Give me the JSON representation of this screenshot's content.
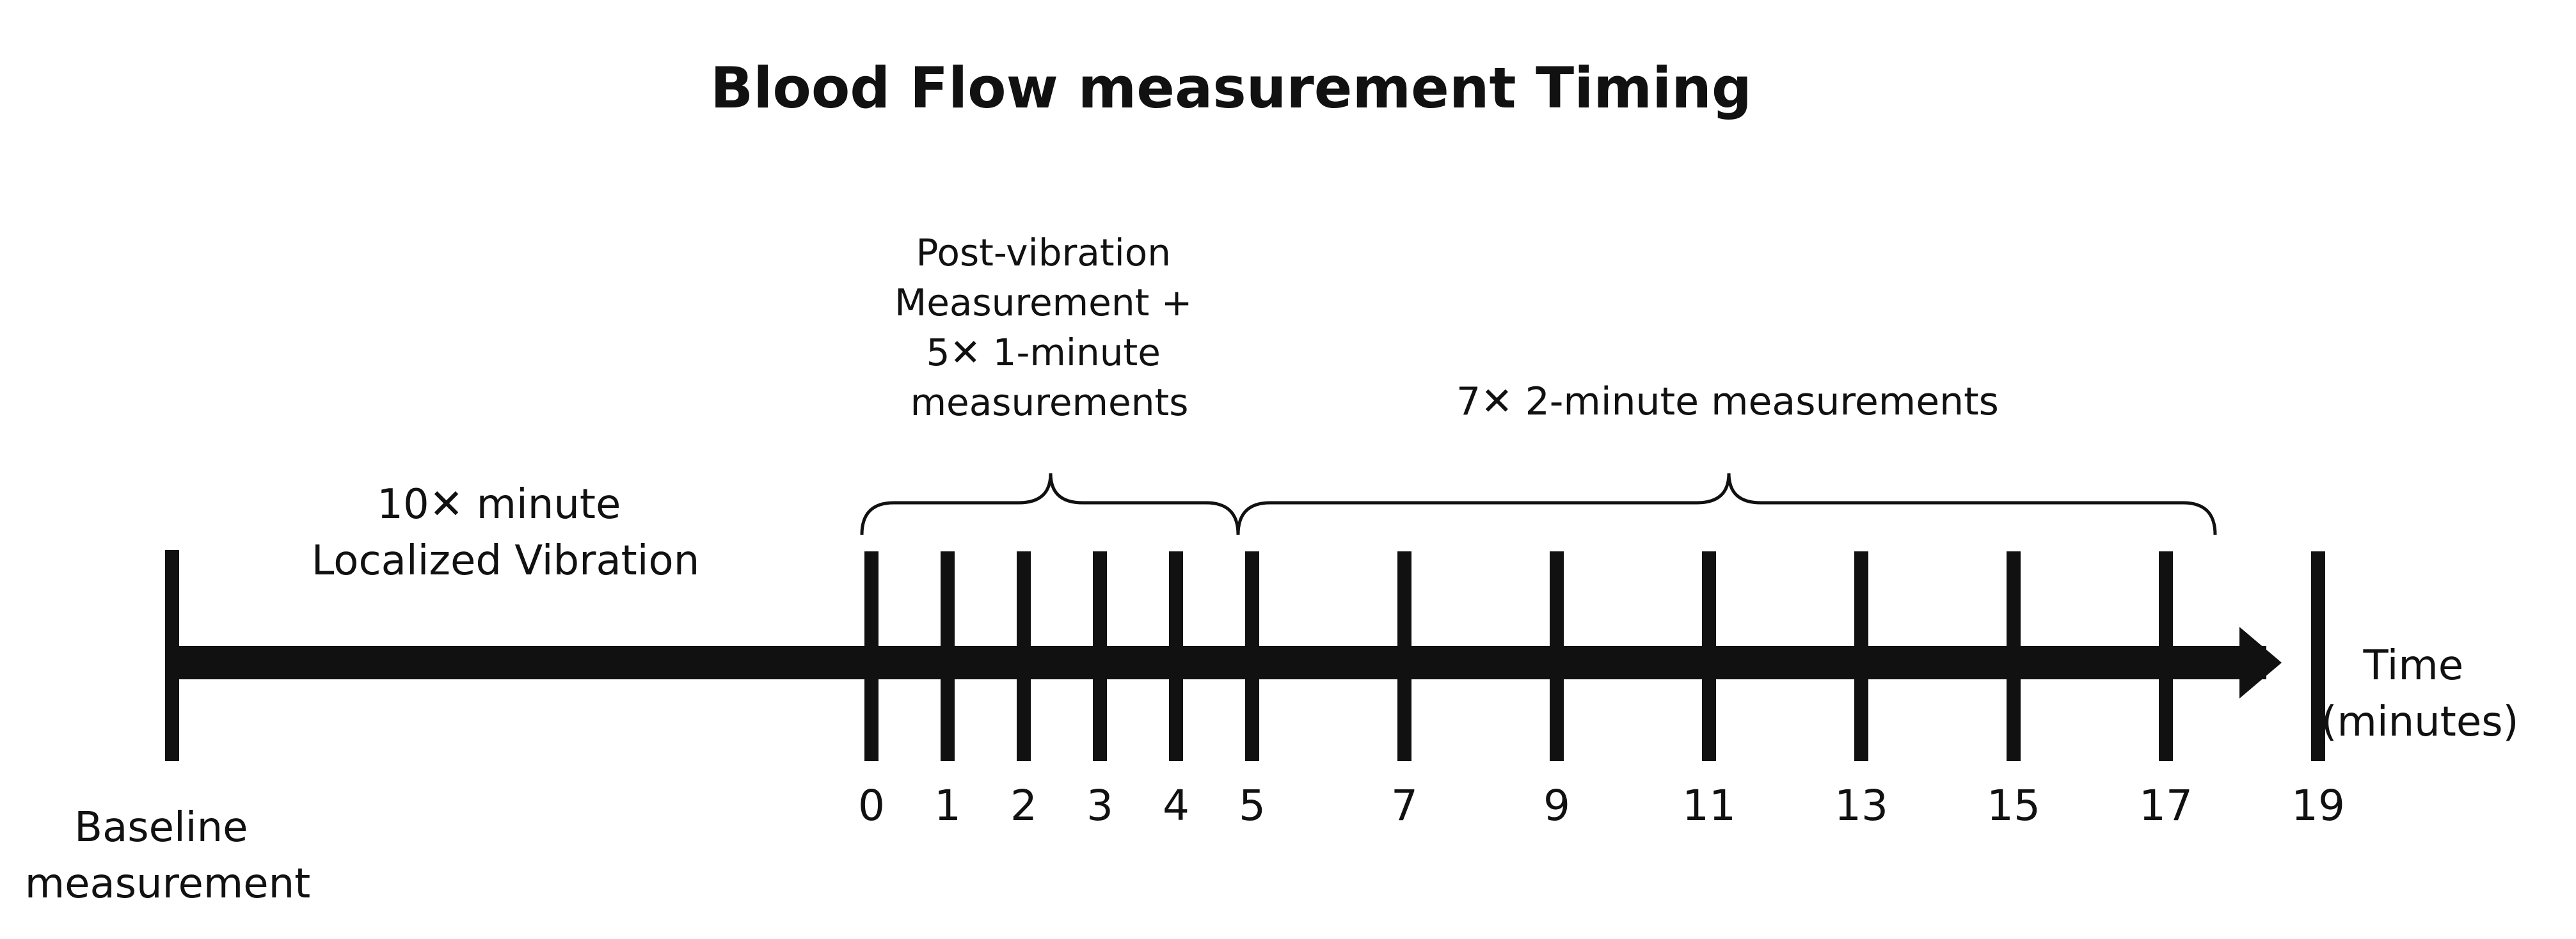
{
  "title": "Blood Flow measurement Timing",
  "vibration": {
    "line1": "10✕ minute",
    "line2": "Localized Vibration"
  },
  "post_vibration": {
    "line1": "Post-vibration",
    "line2": "Measurement +",
    "line3": "5✕ 1-minute",
    "line4": "measurements"
  },
  "two_minute": {
    "label": "7✕ 2-minute measurements"
  },
  "baseline": {
    "line1": "Baseline",
    "line2": "measurement"
  },
  "axis": {
    "line1": "Time",
    "line2": "(minutes)"
  },
  "ticks": [
    {
      "value": 0,
      "label": "0"
    },
    {
      "value": 1,
      "label": "1"
    },
    {
      "value": 2,
      "label": "2"
    },
    {
      "value": 3,
      "label": "3"
    },
    {
      "value": 4,
      "label": "4"
    },
    {
      "value": 5,
      "label": "5"
    },
    {
      "value": 7,
      "label": "7"
    },
    {
      "value": 9,
      "label": "9"
    },
    {
      "value": 11,
      "label": "11"
    },
    {
      "value": 13,
      "label": "13"
    },
    {
      "value": 15,
      "label": "15"
    },
    {
      "value": 17,
      "label": "17"
    },
    {
      "value": 19,
      "label": "19"
    }
  ],
  "colors": {
    "ink": "#111111",
    "background": "#ffffff"
  }
}
